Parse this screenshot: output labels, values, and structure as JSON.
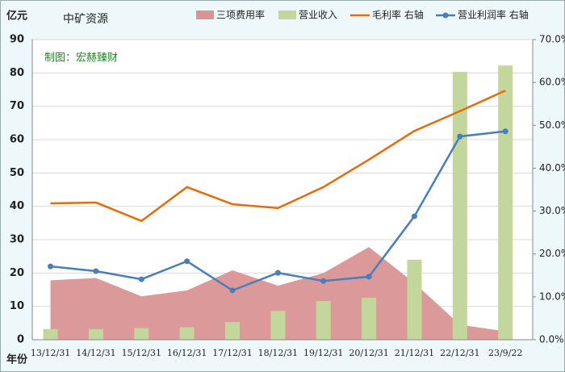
{
  "chart_data": {
    "type": "combo",
    "title": "中矿资源",
    "y_label": "亿元",
    "x_label": "年份",
    "annotation": "制图：宏赫臻财",
    "categories": [
      "13/12/31",
      "14/12/31",
      "15/12/31",
      "16/12/31",
      "17/12/31",
      "18/12/31",
      "19/12/31",
      "20/12/31",
      "21/12/31",
      "22/12/31",
      "23/9/22"
    ],
    "series": [
      {
        "name": "三项费用率",
        "type": "area",
        "color": "#d99594",
        "axis": "y",
        "values": [
          17.8,
          18.5,
          13,
          14.8,
          20.8,
          16.2,
          20,
          27.8,
          17,
          4.5,
          2.5
        ]
      },
      {
        "name": "营业收入",
        "type": "bar",
        "color": "#c3d69b",
        "axis": "y",
        "values": [
          3.2,
          3.2,
          3.5,
          3.7,
          5.3,
          8.6,
          11.6,
          12.6,
          24,
          80.3,
          82.2
        ]
      },
      {
        "name": "毛利率 右轴",
        "type": "line",
        "color": "#e46c0a",
        "axis": "y2",
        "values": [
          31.8,
          32.0,
          27.7,
          35.6,
          31.6,
          30.7,
          35.6,
          42.0,
          48.7,
          53.3,
          58.1
        ]
      },
      {
        "name": "营业利润率 右轴",
        "type": "line-marker",
        "color": "#4a7ebb",
        "axis": "y2",
        "values": [
          17.1,
          16.0,
          14.1,
          18.3,
          11.5,
          15.6,
          13.7,
          14.7,
          28.8,
          47.4,
          48.6
        ]
      }
    ],
    "ylim": [
      0,
      90
    ],
    "yticks": [
      0,
      10,
      20,
      30,
      40,
      50,
      60,
      70,
      80,
      90
    ],
    "y2lim": [
      0,
      70
    ],
    "y2ticks": [
      {
        "value": 0,
        "label": "0.0%"
      },
      {
        "value": 10,
        "label": "10.0%"
      },
      {
        "value": 20,
        "label": "20.0%"
      },
      {
        "value": 30,
        "label": "30.0%"
      },
      {
        "value": 40,
        "label": "40.0%"
      },
      {
        "value": 50,
        "label": "50.0%"
      },
      {
        "value": 60,
        "label": "60.0%"
      },
      {
        "value": 70,
        "label": "70.0%"
      }
    ],
    "grid": true
  }
}
